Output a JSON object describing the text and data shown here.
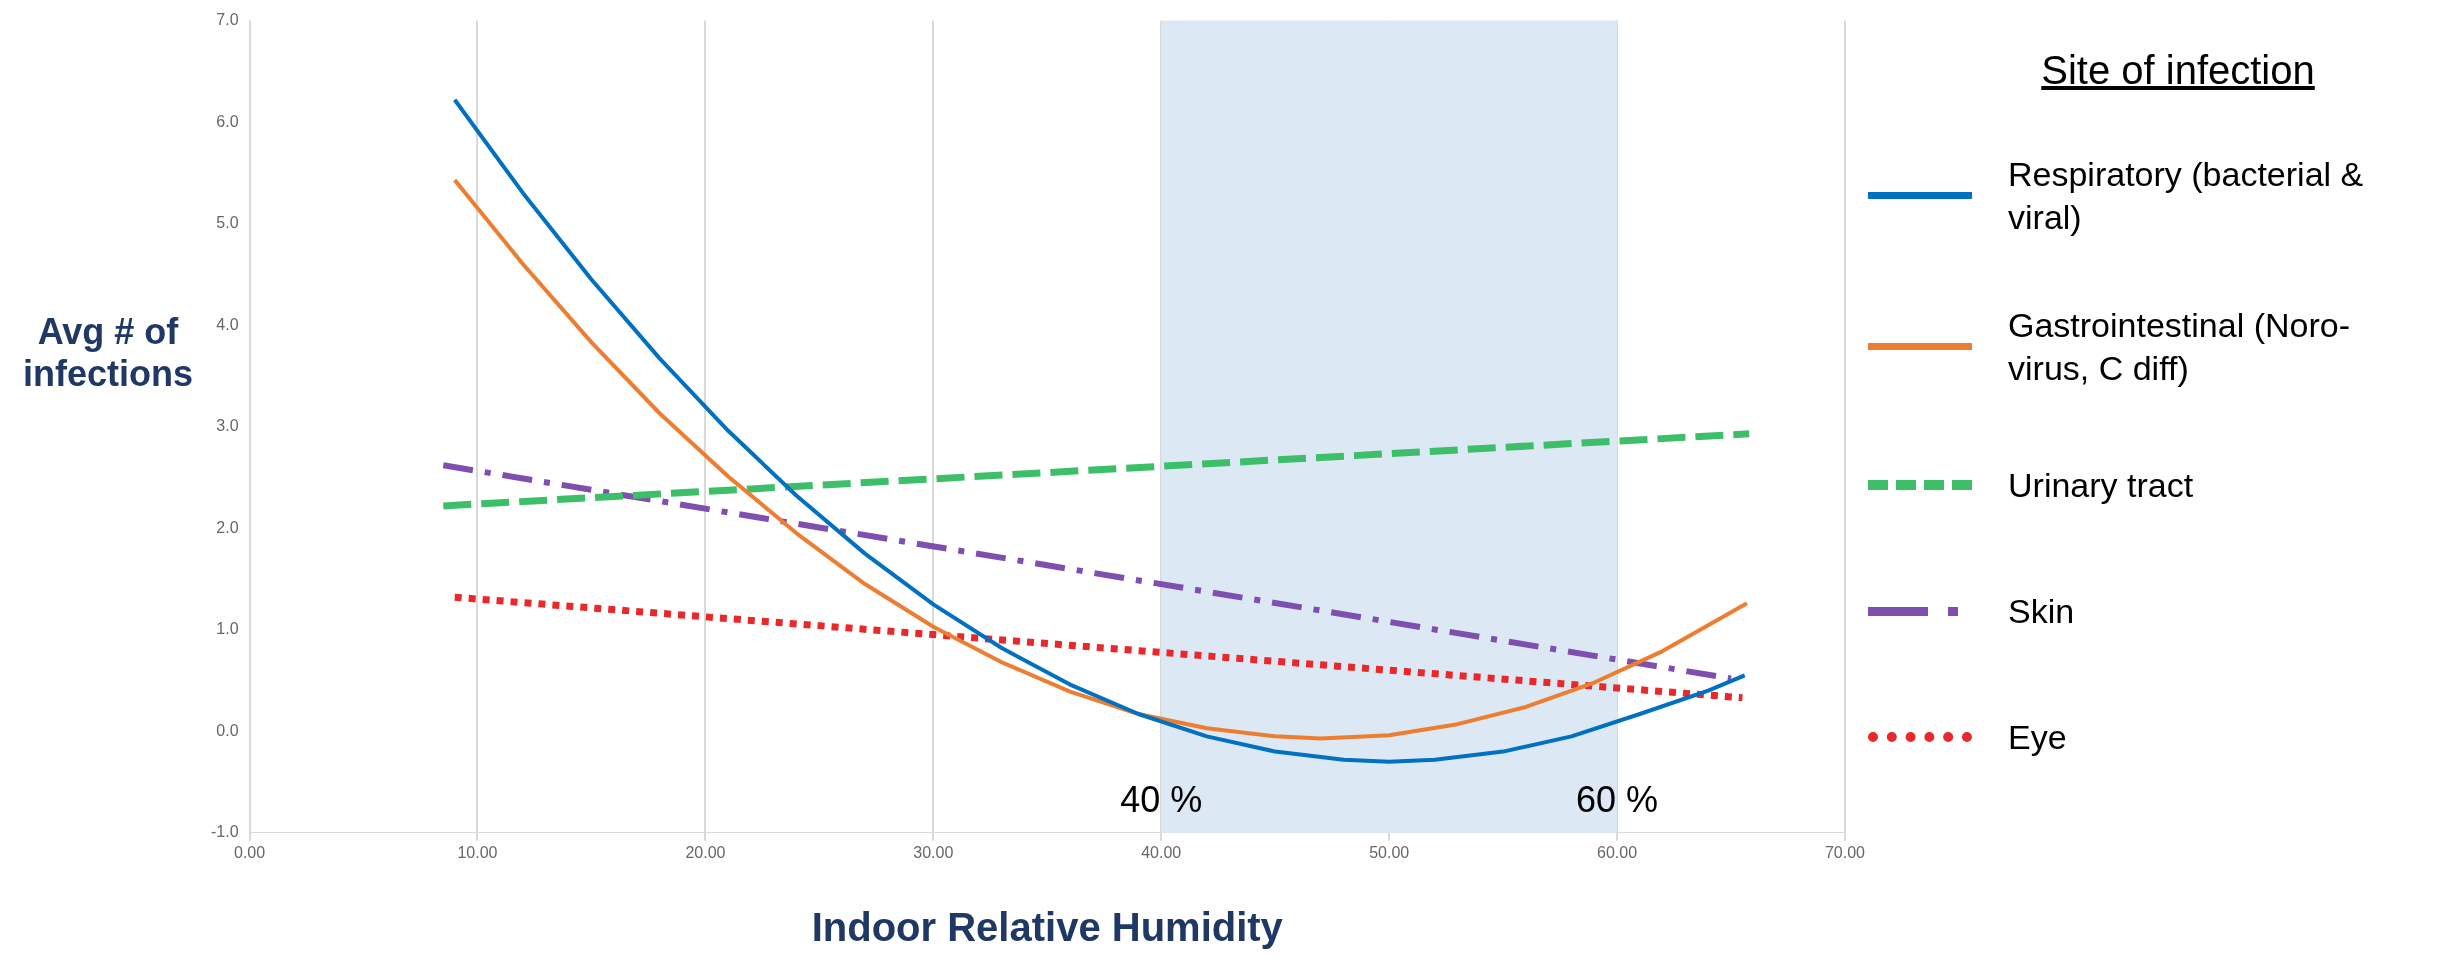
{
  "chart_data": {
    "type": "line",
    "xlabel": "Indoor Relative Humidity",
    "ylabel": "Avg # of infections",
    "legend_title": "Site of infection",
    "legend": "right",
    "grid": "x",
    "marker": "none",
    "xlim": [
      0,
      70
    ],
    "xticks": [
      {
        "value": 0,
        "label": "0.00"
      },
      {
        "value": 10,
        "label": "10.00"
      },
      {
        "value": 20,
        "label": "20.00"
      },
      {
        "value": 30,
        "label": "30.00"
      },
      {
        "value": 40,
        "label": "40.00"
      },
      {
        "value": 50,
        "label": "50.00"
      },
      {
        "value": 60,
        "label": "60.00"
      },
      {
        "value": 70,
        "label": "70.00"
      }
    ],
    "ylim": [
      -1,
      7
    ],
    "yticks": [
      {
        "value": -1,
        "label": "-1.0"
      },
      {
        "value": 0,
        "label": "0.0"
      },
      {
        "value": 1,
        "label": "1.0"
      },
      {
        "value": 2,
        "label": "2.0"
      },
      {
        "value": 3,
        "label": "3.0"
      },
      {
        "value": 4,
        "label": "4.0"
      },
      {
        "value": 5,
        "label": "5.0"
      },
      {
        "value": 6,
        "label": "6.0"
      },
      {
        "value": 7,
        "label": "7.0"
      }
    ],
    "bands": [
      {
        "axis": "x",
        "from": 40,
        "to": 60,
        "color": "#dce8f4"
      }
    ],
    "annotations": [
      {
        "text": "40 %",
        "x": 40,
        "y": -0.7
      },
      {
        "text": "60 %",
        "x": 60,
        "y": -0.7
      }
    ],
    "series": [
      {
        "name": "Respiratory (bacterial & viral)",
        "color": "#0070c0",
        "line_style": "solid",
        "x": [
          9,
          12,
          15,
          18,
          21,
          24,
          27,
          30,
          33,
          36,
          39,
          42,
          45,
          48,
          50,
          52,
          55,
          58,
          61,
          64,
          65.6
        ],
        "values": [
          6.22,
          5.3,
          4.45,
          3.67,
          2.96,
          2.32,
          1.75,
          1.25,
          0.82,
          0.46,
          0.17,
          -0.05,
          -0.2,
          -0.28,
          -0.3,
          -0.28,
          -0.2,
          -0.05,
          0.17,
          0.4,
          0.55
        ]
      },
      {
        "name": "Gastrointestinal (Noro-virus, C diff)",
        "color": "#ed7d31",
        "line_style": "solid",
        "x": [
          9,
          12,
          15,
          18,
          21,
          24,
          27,
          30,
          33,
          36,
          39,
          42,
          45,
          47,
          50,
          53,
          56,
          59,
          62,
          65.7
        ],
        "values": [
          5.43,
          4.6,
          3.83,
          3.13,
          2.51,
          1.95,
          1.45,
          1.03,
          0.68,
          0.39,
          0.17,
          0.03,
          -0.05,
          -0.07,
          -0.04,
          0.07,
          0.24,
          0.48,
          0.79,
          1.26
        ]
      },
      {
        "name": "Urinary tract",
        "color": "#3dbf6a",
        "line_style": "dashed",
        "x": [
          8.5,
          65.8
        ],
        "values": [
          2.22,
          2.93
        ]
      },
      {
        "name": "Skin",
        "color": "#7f4fb0",
        "line_style": "dashdot",
        "x": [
          8.5,
          65
        ],
        "values": [
          2.62,
          0.52
        ]
      },
      {
        "name": "Eye",
        "color": "#e8282b",
        "line_style": "dotted",
        "x": [
          9,
          65.5
        ],
        "values": [
          1.32,
          0.33
        ]
      }
    ]
  }
}
